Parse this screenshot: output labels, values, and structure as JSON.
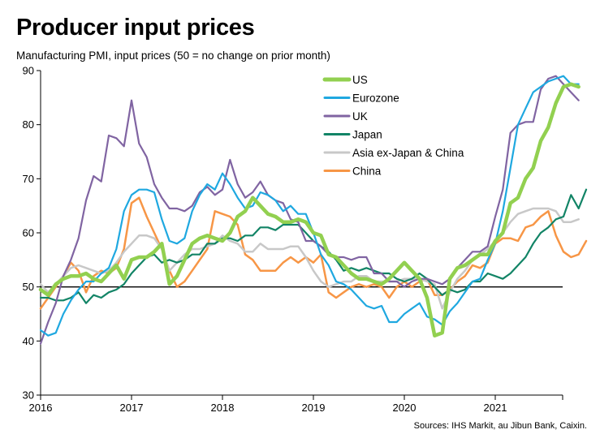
{
  "header": {
    "title": "Producer input prices",
    "subtitle": "Manufacturing PMI, input prices (50 = no change on prior month)"
  },
  "footer": {
    "source": "Sources: IHS Markit, au Jibun Bank, Caixin."
  },
  "chart_data": {
    "type": "line",
    "title": "Producer input prices",
    "subtitle": "Manufacturing PMI, input prices (50 = no change on prior month)",
    "xlabel": "",
    "ylabel": "",
    "x_ticks": [
      "2016",
      "2017",
      "2018",
      "2019",
      "2020",
      "2021"
    ],
    "y_ticks": [
      30,
      40,
      50,
      60,
      70,
      80,
      90
    ],
    "ylim": [
      30,
      90
    ],
    "x_start": "2016-01",
    "x_frequency": "monthly",
    "reference_line": 50,
    "legend_position": "top-center",
    "grid": false,
    "series": [
      {
        "name": "US",
        "color": "#92d050",
        "width": 4.5,
        "values": [
          49.5,
          48.5,
          50.5,
          51.5,
          52,
          52,
          52.5,
          51.5,
          51,
          52.5,
          54,
          51.5,
          55,
          55.5,
          55.5,
          56.5,
          58,
          50.5,
          52,
          55,
          58,
          59,
          59.5,
          59,
          58.5,
          60,
          63,
          64,
          66.5,
          65,
          63.5,
          63,
          62,
          62,
          62.5,
          62,
          60,
          59.5,
          56,
          55.5,
          54,
          52.5,
          51.5,
          51.5,
          51,
          50.5,
          51.5,
          53,
          54.5,
          53,
          51.5,
          48,
          41,
          41.5,
          51.5,
          53.5,
          54,
          55,
          56,
          56,
          58.5,
          60,
          65.5,
          66.5,
          70,
          72,
          77,
          79.5,
          84,
          87,
          87.5,
          87
        ]
      },
      {
        "name": "Eurozone",
        "color": "#1fa8e0",
        "width": 2.2,
        "values": [
          42,
          41,
          41.5,
          45,
          47.5,
          49.5,
          51,
          51,
          52.5,
          53.5,
          57,
          64,
          67,
          68,
          68,
          67.5,
          62.5,
          58.5,
          58,
          59,
          64,
          67,
          69,
          68,
          71,
          69,
          66.5,
          64.5,
          65,
          67.5,
          67,
          66,
          64,
          65,
          63.5,
          63.5,
          60,
          56,
          54,
          51,
          50.5,
          49.5,
          48,
          46.5,
          46,
          46.5,
          43.5,
          43.5,
          45,
          46,
          47,
          44.5,
          44,
          43,
          45.5,
          47,
          49,
          51,
          51.5,
          55,
          58,
          64,
          72,
          80,
          83,
          86,
          87,
          88,
          88.5,
          89,
          87.5,
          87.5
        ]
      },
      {
        "name": "UK",
        "color": "#8064a2",
        "width": 2.2,
        "values": [
          39.5,
          43.5,
          47,
          52,
          55,
          59,
          66,
          70.5,
          69.5,
          78,
          77.5,
          76,
          84.5,
          76.5,
          74,
          69,
          66.5,
          64.5,
          64.5,
          64,
          65,
          67.5,
          68.5,
          67,
          68,
          73.5,
          69,
          66.5,
          67.5,
          69.5,
          67,
          66,
          65.5,
          62.5,
          62,
          58.5,
          58.5,
          57.5,
          56,
          55.5,
          55.5,
          55,
          55.5,
          55.5,
          52.5,
          52.5,
          51,
          51,
          50,
          51,
          51.5,
          51.5,
          51,
          50.5,
          51.5,
          53.5,
          55,
          56.5,
          56.5,
          57.5,
          63,
          68,
          78.5,
          80,
          80.5,
          80.5,
          86.5,
          88.5,
          89,
          87.5,
          86,
          84.5
        ]
      },
      {
        "name": "Japan",
        "color": "#128466",
        "width": 2.2,
        "values": [
          48,
          48,
          47.5,
          47.5,
          48,
          49,
          47,
          48.5,
          48,
          49,
          49.5,
          50.5,
          52.5,
          54,
          55.5,
          56,
          54.5,
          55,
          54.5,
          55,
          56,
          56,
          58,
          58,
          59,
          59,
          58.5,
          59.5,
          59.5,
          61,
          61,
          60.5,
          61.5,
          61.5,
          61.5,
          60,
          58.5,
          57.5,
          56.5,
          55,
          53,
          53.5,
          53,
          53.5,
          53,
          52.5,
          52.5,
          51.5,
          51,
          51.5,
          52.5,
          51.5,
          50,
          48.5,
          49.5,
          49,
          49.5,
          51,
          51,
          52.5,
          52,
          51.5,
          52.5,
          54,
          55.5,
          58,
          60,
          61,
          62.5,
          63,
          67,
          64.5,
          68
        ]
      },
      {
        "name": "Asia ex-Japan & China",
        "color": "#c8c8c8",
        "width": 2.5,
        "values": [
          50.5,
          49,
          50.5,
          52,
          53.5,
          54,
          53.5,
          53,
          52.5,
          53,
          54.5,
          56.5,
          58,
          59.5,
          59.5,
          59,
          57,
          53,
          54.5,
          56,
          57,
          57,
          57.5,
          58,
          59.5,
          58.5,
          58,
          56.5,
          56.5,
          58,
          57,
          57,
          57,
          57.5,
          57.5,
          55.5,
          53,
          51,
          50,
          50.5,
          51,
          51,
          52,
          52,
          51,
          51,
          51,
          51,
          51.5,
          51.5,
          51.5,
          51,
          50.5,
          46,
          49,
          51.5,
          53,
          55,
          56,
          57,
          58.5,
          60,
          62,
          63.5,
          64,
          64.5,
          64.5,
          64.5,
          64,
          62,
          62,
          62.5
        ]
      },
      {
        "name": "China",
        "color": "#f79646",
        "width": 2.5,
        "values": [
          46,
          48,
          50,
          52,
          54.5,
          53,
          49,
          52,
          53,
          52.5,
          53.5,
          57,
          65.5,
          66.5,
          63,
          60,
          57,
          53,
          50,
          51,
          53,
          55,
          57,
          64,
          63.5,
          63,
          61.5,
          56,
          55,
          53,
          53,
          53,
          54.5,
          55.5,
          54.5,
          55.5,
          54.5,
          56,
          49,
          48,
          49,
          50,
          50.5,
          50,
          50.5,
          50,
          48,
          50,
          51,
          50,
          51,
          51.5,
          48.5,
          48.5,
          49.5,
          51,
          52,
          54,
          53.5,
          54.5,
          58,
          59,
          59,
          58.5,
          61,
          61.5,
          63,
          64,
          59.5,
          56.5,
          55.5,
          56,
          58.5
        ]
      }
    ]
  }
}
